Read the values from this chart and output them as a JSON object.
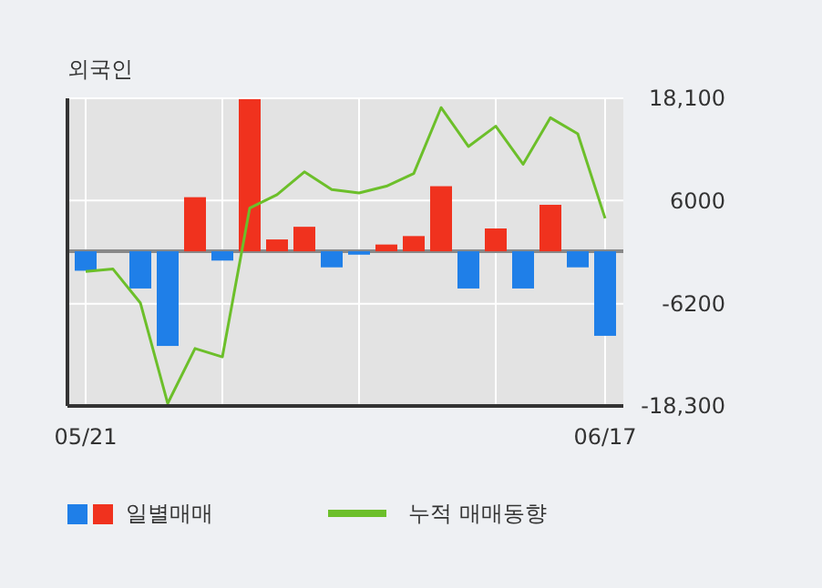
{
  "chart_data": {
    "type": "bar",
    "title": "외국인",
    "categories": [
      "05/21",
      null,
      null,
      null,
      null,
      null,
      null,
      null,
      null,
      null,
      null,
      null,
      null,
      null,
      null,
      null,
      null,
      null,
      null,
      "06/17"
    ],
    "series": [
      {
        "name": "일별매매",
        "values": [
          -2300,
          0,
          -4400,
          -11200,
          6400,
          -1100,
          18000,
          1400,
          2900,
          -1900,
          -400,
          800,
          1800,
          7700,
          -4400,
          2700,
          -4400,
          5500,
          -1900,
          -10000
        ],
        "colors": [
          "#1f7fe8",
          "#1f7fe8",
          "#1f7fe8",
          "#1f7fe8",
          "#f0321e",
          "#1f7fe8",
          "#f0321e",
          "#f0321e",
          "#f0321e",
          "#1f7fe8",
          "#1f7fe8",
          "#f0321e",
          "#f0321e",
          "#f0321e",
          "#1f7fe8",
          "#f0321e",
          "#1f7fe8",
          "#f0321e",
          "#1f7fe8",
          "#1f7fe8"
        ]
      },
      {
        "type": "line",
        "name": "누적 매매동향",
        "color": "#6cbf2a",
        "values": [
          -2400,
          -2100,
          -6100,
          -18000,
          -11500,
          -12500,
          5100,
          6700,
          9400,
          7300,
          6900,
          7700,
          9200,
          17000,
          12400,
          14800,
          10300,
          15800,
          13900,
          3900
        ]
      }
    ],
    "ylim": [
      -18300,
      18100
    ],
    "yticks": [
      {
        "value": 18100,
        "label": "18,100"
      },
      6000,
      -6200,
      {
        "value": -18300,
        "label": "-18,300"
      }
    ],
    "grid": true,
    "legend": "bottom"
  }
}
